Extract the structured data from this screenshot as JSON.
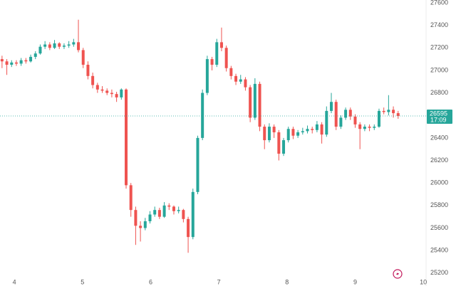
{
  "chart_data": {
    "type": "candlestick",
    "x": [
      3.82,
      3.89,
      3.96,
      4.03,
      4.1,
      4.17,
      4.24,
      4.31,
      4.38,
      4.45,
      4.52,
      4.59,
      4.66,
      4.73,
      4.8,
      4.87,
      4.94,
      5.01,
      5.08,
      5.15,
      5.22,
      5.29,
      5.36,
      5.43,
      5.5,
      5.57,
      5.64,
      5.71,
      5.78,
      5.85,
      5.92,
      5.99,
      6.06,
      6.13,
      6.2,
      6.27,
      6.34,
      6.41,
      6.48,
      6.55,
      6.62,
      6.69,
      6.76,
      6.83,
      6.9,
      6.97,
      7.04,
      7.11,
      7.18,
      7.25,
      7.32,
      7.39,
      7.46,
      7.53,
      7.6,
      7.67,
      7.74,
      7.81,
      7.88,
      7.95,
      8.02,
      8.09,
      8.16,
      8.23,
      8.3,
      8.37,
      8.44,
      8.51,
      8.58,
      8.65,
      8.72,
      8.79,
      8.86,
      8.93,
      9.0,
      9.07,
      9.14,
      9.21,
      9.28,
      9.35,
      9.42,
      9.49,
      9.56,
      9.63
    ],
    "open": [
      27100,
      27080,
      27050,
      27070,
      27060,
      27090,
      27080,
      27120,
      27150,
      27210,
      27230,
      27200,
      27240,
      27210,
      27220,
      27230,
      27250,
      27180,
      27050,
      26950,
      26870,
      26830,
      26820,
      26800,
      26790,
      26760,
      26830,
      25980,
      25760,
      25620,
      25600,
      25660,
      25720,
      25760,
      25700,
      25800,
      25790,
      25750,
      25760,
      25680,
      25520,
      25920,
      26400,
      26800,
      27100,
      27050,
      27250,
      27200,
      27020,
      26950,
      26900,
      26920,
      26850,
      26580,
      26880,
      26500,
      26380,
      26500,
      26450,
      26260,
      26380,
      26480,
      26420,
      26450,
      26460,
      26480,
      26470,
      26520,
      26430,
      26640,
      26720,
      26500,
      26580,
      26650,
      26590,
      26520,
      26480,
      26500,
      26490,
      26500,
      26640,
      26630,
      26650,
      26620
    ],
    "high": [
      27130,
      27100,
      27090,
      27090,
      27110,
      27110,
      27140,
      27170,
      27230,
      27260,
      27250,
      27270,
      27250,
      27240,
      27260,
      27280,
      27450,
      27200,
      27080,
      26980,
      26890,
      26860,
      26840,
      26830,
      26810,
      26840,
      26840,
      26000,
      25790,
      25660,
      25690,
      25750,
      25790,
      25780,
      25830,
      25820,
      25800,
      25790,
      25770,
      25700,
      25950,
      26420,
      26830,
      27130,
      27120,
      27280,
      27380,
      27220,
      27040,
      26970,
      26960,
      26940,
      26870,
      26930,
      26900,
      26520,
      26530,
      26520,
      26470,
      26400,
      26500,
      26500,
      26470,
      26490,
      26510,
      26500,
      26550,
      26540,
      26680,
      26800,
      26740,
      26600,
      26670,
      26670,
      26610,
      26540,
      26520,
      26520,
      26520,
      26660,
      26670,
      26780,
      26680,
      26640
    ],
    "low": [
      27020,
      26960,
      27030,
      27040,
      27040,
      27060,
      27070,
      27100,
      27140,
      27190,
      27180,
      27190,
      27190,
      27190,
      27200,
      27210,
      27160,
      27020,
      26920,
      26840,
      26800,
      26800,
      26780,
      26760,
      26720,
      26740,
      25950,
      25700,
      25450,
      25480,
      25580,
      25640,
      25700,
      25680,
      25690,
      25760,
      25720,
      25730,
      25650,
      25380,
      25500,
      25900,
      26380,
      26780,
      27000,
      27030,
      27170,
      26990,
      26920,
      26870,
      26880,
      26820,
      26540,
      26560,
      26460,
      26300,
      26360,
      26400,
      26200,
      26240,
      26360,
      26390,
      26400,
      26430,
      26440,
      26440,
      26450,
      26350,
      26410,
      26620,
      26470,
      26480,
      26560,
      26560,
      26490,
      26300,
      26460,
      26460,
      26470,
      26490,
      26610,
      26600,
      26580,
      26570
    ],
    "close": [
      27080,
      27050,
      27070,
      27060,
      27090,
      27080,
      27120,
      27150,
      27210,
      27230,
      27200,
      27240,
      27210,
      27220,
      27230,
      27250,
      27180,
      27050,
      26950,
      26870,
      26830,
      26820,
      26800,
      26790,
      26760,
      26830,
      25980,
      25760,
      25620,
      25600,
      25660,
      25720,
      25760,
      25700,
      25800,
      25790,
      25750,
      25760,
      25680,
      25520,
      25920,
      26400,
      26800,
      27100,
      27050,
      27250,
      27200,
      27020,
      26950,
      26900,
      26920,
      26850,
      26580,
      26880,
      26500,
      26380,
      26500,
      26450,
      26260,
      26380,
      26480,
      26420,
      26450,
      26460,
      26480,
      26470,
      26520,
      26430,
      26640,
      26720,
      26500,
      26580,
      26650,
      26590,
      26520,
      26480,
      26500,
      26490,
      26500,
      26640,
      26630,
      26650,
      26620,
      26595
    ],
    "up_color": "#26a69a",
    "down_color": "#ef5350",
    "last_price": 26595,
    "countdown": "17:09",
    "xlim": [
      3.79,
      10.04
    ],
    "xticks": [
      4,
      5,
      6,
      7,
      8,
      9,
      10
    ],
    "ylim": [
      25085,
      27625
    ],
    "yticks": [
      25200,
      25400,
      25600,
      25800,
      26000,
      26200,
      26400,
      26600,
      26800,
      27000,
      27200,
      27400,
      27600
    ],
    "grid": false
  }
}
